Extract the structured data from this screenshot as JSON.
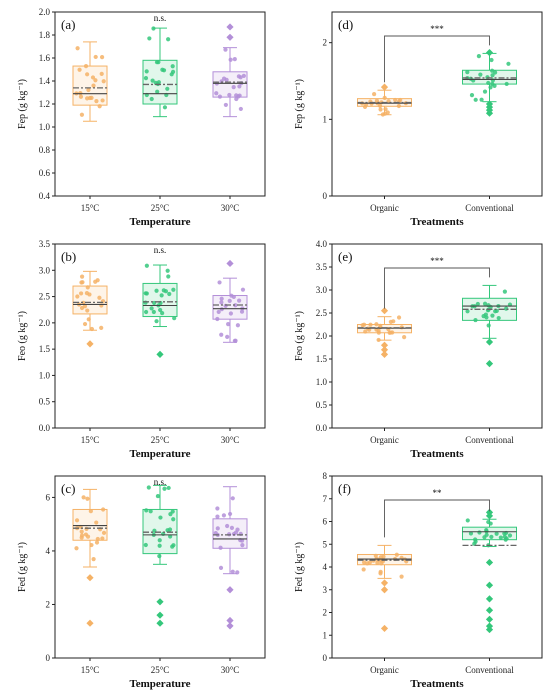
{
  "colors": {
    "orange": "#f5b266",
    "green": "#34c77b",
    "purple": "#b38fd8",
    "axis": "#222222",
    "mean": "#666666"
  },
  "chart_data": [
    {
      "panel": "(a)",
      "type": "box",
      "ylabel": "Fep (g kg⁻¹)",
      "xlabel": "Temperature",
      "ylim": [
        0.4,
        2.0
      ],
      "yticks": [
        "0.4",
        "0.6",
        "0.8",
        "1.0",
        "1.2",
        "1.4",
        "1.6",
        "1.8",
        "2.0"
      ],
      "ytick_values": [
        0.4,
        0.6,
        0.8,
        1.0,
        1.2,
        1.4,
        1.6,
        1.8,
        2.0
      ],
      "significance": "n.s.",
      "categories": [
        "15°C",
        "25°C",
        "30°C"
      ],
      "boxes": [
        {
          "q1": 1.19,
          "median": 1.29,
          "mean": 1.34,
          "q3": 1.53,
          "whisker_low": 1.05,
          "whisker_high": 1.74,
          "outliers": [],
          "color": "orange"
        },
        {
          "q1": 1.2,
          "median": 1.29,
          "mean": 1.37,
          "q3": 1.58,
          "whisker_low": 1.09,
          "whisker_high": 1.86,
          "outliers": [],
          "color": "green"
        },
        {
          "q1": 1.26,
          "median": 1.38,
          "mean": 1.39,
          "q3": 1.48,
          "whisker_low": 1.09,
          "whisker_high": 1.69,
          "outliers": [
            1.87,
            1.78
          ],
          "color": "purple"
        }
      ]
    },
    {
      "panel": "(d)",
      "type": "box",
      "ylabel": "Fep (g kg⁻¹)",
      "xlabel": "Treatments",
      "ylim": [
        0,
        2.4
      ],
      "yticks": [
        "0",
        "1",
        "2"
      ],
      "ytick_values": [
        0,
        1,
        2
      ],
      "significance": "***",
      "categories": [
        "Organic",
        "Conventional"
      ],
      "boxes": [
        {
          "q1": 1.17,
          "median": 1.21,
          "mean": 1.22,
          "q3": 1.27,
          "whisker_low": 1.06,
          "whisker_high": 1.38,
          "outliers": [
            1.42
          ],
          "color": "orange"
        },
        {
          "q1": 1.46,
          "median": 1.52,
          "mean": 1.54,
          "q3": 1.64,
          "whisker_low": 1.23,
          "whisker_high": 1.86,
          "outliers": [
            1.2,
            1.16,
            1.12,
            1.08,
            1.87
          ],
          "color": "green"
        }
      ]
    },
    {
      "panel": "(b)",
      "type": "box",
      "ylabel": "Feo (g kg⁻¹)",
      "xlabel": "Temperature",
      "ylim": [
        0.0,
        3.5
      ],
      "yticks": [
        "0.0",
        "0.5",
        "1.0",
        "1.5",
        "2.0",
        "2.5",
        "3.0",
        "3.5"
      ],
      "ytick_values": [
        0,
        0.5,
        1.0,
        1.5,
        2.0,
        2.5,
        3.0,
        3.5
      ],
      "significance": "n.s.",
      "categories": [
        "15°C",
        "25°C",
        "30°C"
      ],
      "boxes": [
        {
          "q1": 2.17,
          "median": 2.35,
          "mean": 2.39,
          "q3": 2.7,
          "whisker_low": 1.86,
          "whisker_high": 2.98,
          "outliers": [
            1.6
          ],
          "color": "orange"
        },
        {
          "q1": 2.12,
          "median": 2.33,
          "mean": 2.4,
          "q3": 2.75,
          "whisker_low": 1.93,
          "whisker_high": 3.1,
          "outliers": [
            1.4
          ],
          "color": "green"
        },
        {
          "q1": 2.07,
          "median": 2.27,
          "mean": 2.34,
          "q3": 2.52,
          "whisker_low": 1.63,
          "whisker_high": 2.85,
          "outliers": [
            3.13
          ],
          "color": "purple"
        }
      ]
    },
    {
      "panel": "(e)",
      "type": "box",
      "ylabel": "Feo (g kg⁻¹)",
      "xlabel": "Treatments",
      "ylim": [
        0.0,
        4.0
      ],
      "yticks": [
        "0.0",
        "0.5",
        "1.0",
        "1.5",
        "2.0",
        "2.5",
        "3.0",
        "3.5",
        "4.0"
      ],
      "ytick_values": [
        0,
        0.5,
        1.0,
        1.5,
        2.0,
        2.5,
        3.0,
        3.5,
        4.0
      ],
      "significance": "***",
      "categories": [
        "Organic",
        "Conventional"
      ],
      "boxes": [
        {
          "q1": 2.07,
          "median": 2.17,
          "mean": 2.18,
          "q3": 2.25,
          "whisker_low": 1.91,
          "whisker_high": 2.42,
          "outliers": [
            1.8,
            1.7,
            1.6,
            2.55
          ],
          "color": "orange"
        },
        {
          "q1": 2.34,
          "median": 2.65,
          "mean": 2.58,
          "q3": 2.82,
          "whisker_low": 1.95,
          "whisker_high": 3.1,
          "outliers": [
            1.87,
            1.4
          ],
          "color": "green"
        }
      ]
    },
    {
      "panel": "(c)",
      "type": "box",
      "ylabel": "Fed (g kg⁻¹)",
      "xlabel": "Temperature",
      "ylim": [
        0,
        6.8
      ],
      "yticks": [
        "0",
        "2",
        "4",
        "6"
      ],
      "ytick_values": [
        0,
        2,
        4,
        6
      ],
      "significance": "n.s.",
      "categories": [
        "15°C",
        "25°C",
        "30°C"
      ],
      "boxes": [
        {
          "q1": 4.4,
          "median": 4.95,
          "mean": 4.85,
          "q3": 5.55,
          "whisker_low": 3.4,
          "whisker_high": 6.3,
          "outliers": [
            3.0,
            1.3
          ],
          "color": "orange"
        },
        {
          "q1": 3.9,
          "median": 4.6,
          "mean": 4.7,
          "q3": 5.55,
          "whisker_low": 3.5,
          "whisker_high": 6.45,
          "outliers": [
            2.1,
            1.6,
            1.3
          ],
          "color": "green"
        },
        {
          "q1": 4.1,
          "median": 4.45,
          "mean": 4.6,
          "q3": 5.2,
          "whisker_low": 3.15,
          "whisker_high": 6.4,
          "outliers": [
            2.55,
            1.4,
            1.2
          ],
          "color": "purple"
        }
      ]
    },
    {
      "panel": "(f)",
      "type": "box",
      "ylabel": "Fed (g kg⁻¹)",
      "xlabel": "Treatments",
      "ylim": [
        0,
        8
      ],
      "yticks": [
        "0",
        "1",
        "2",
        "3",
        "4",
        "5",
        "6",
        "7",
        "8"
      ],
      "ytick_values": [
        0,
        1,
        2,
        3,
        4,
        5,
        6,
        7,
        8
      ],
      "significance": "**",
      "categories": [
        "Organic",
        "Conventional"
      ],
      "boxes": [
        {
          "q1": 4.1,
          "median": 4.35,
          "mean": 4.3,
          "q3": 4.55,
          "whisker_low": 3.5,
          "whisker_high": 4.95,
          "outliers": [
            3.3,
            3.0,
            1.3
          ],
          "color": "orange"
        },
        {
          "q1": 5.2,
          "median": 5.55,
          "mean": 4.95,
          "q3": 5.75,
          "whisker_low": 4.9,
          "whisker_high": 6.1,
          "outliers": [
            6.25,
            6.4,
            4.2,
            3.2,
            2.6,
            2.1,
            1.7,
            1.4,
            1.25
          ],
          "color": "green"
        }
      ]
    }
  ]
}
